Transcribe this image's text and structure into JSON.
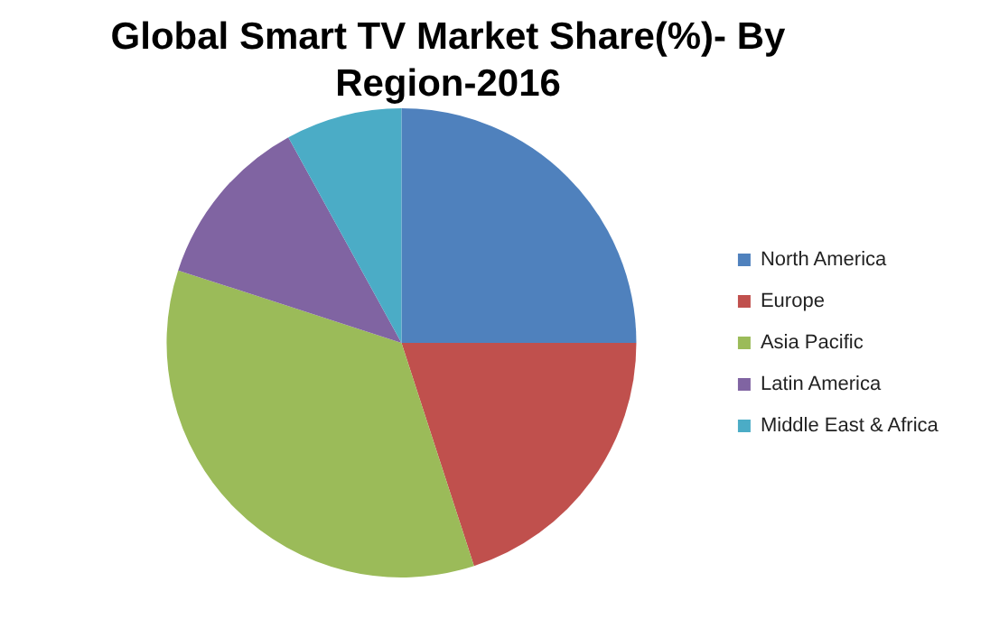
{
  "chart_data": {
    "type": "pie",
    "title": "Global Smart TV Market Share(%)- By Region-2016",
    "categories": [
      "North America",
      "Europe",
      "Asia Pacific",
      "Latin America",
      "Middle East & Africa"
    ],
    "values": [
      25,
      20,
      35,
      12,
      8
    ],
    "colors": [
      "#4f81bd",
      "#c0504d",
      "#9bbb59",
      "#8064a2",
      "#4bacc6"
    ],
    "legend": "right"
  }
}
